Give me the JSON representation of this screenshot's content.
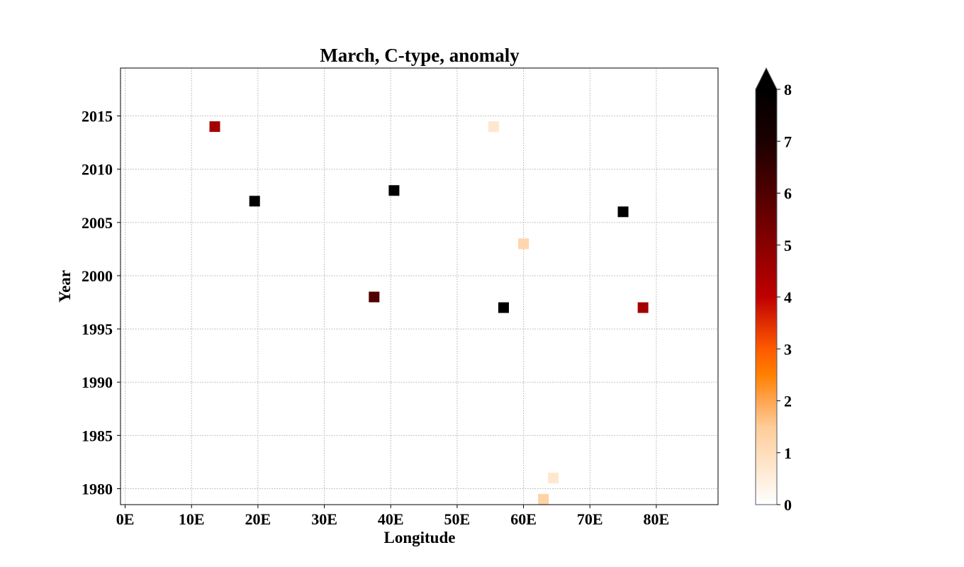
{
  "chart_data": {
    "type": "scatter",
    "title": "March, C-type, anomaly",
    "xlabel": "Longitude",
    "ylabel": "Year",
    "xlim": [
      -0.7,
      89.3
    ],
    "ylim": [
      1978.5,
      2019.5
    ],
    "x_ticks": [
      0,
      10,
      20,
      30,
      40,
      50,
      60,
      70,
      80
    ],
    "x_tick_labels": [
      "0E",
      "10E",
      "20E",
      "30E",
      "40E",
      "50E",
      "60E",
      "70E",
      "80E"
    ],
    "y_ticks": [
      1980,
      1985,
      1990,
      1995,
      2000,
      2005,
      2010,
      2015
    ],
    "y_tick_labels": [
      "1980",
      "1985",
      "1990",
      "1995",
      "2000",
      "2005",
      "2010",
      "2015"
    ],
    "grid": true,
    "marker": "square",
    "colormap": "gist_heat_r",
    "points": [
      {
        "x": 13.5,
        "y": 2014,
        "value": 4.5
      },
      {
        "x": 55.5,
        "y": 2014,
        "value": 0.7
      },
      {
        "x": 40.5,
        "y": 2008,
        "value": 8.5
      },
      {
        "x": 19.5,
        "y": 2007,
        "value": 8.5
      },
      {
        "x": 75.0,
        "y": 2006,
        "value": 8.5
      },
      {
        "x": 60.0,
        "y": 2003,
        "value": 1.2
      },
      {
        "x": 37.5,
        "y": 1998,
        "value": 6.0
      },
      {
        "x": 57.0,
        "y": 1997,
        "value": 8.5
      },
      {
        "x": 78.0,
        "y": 1997,
        "value": 4.5
      },
      {
        "x": 64.5,
        "y": 1981,
        "value": 0.7
      },
      {
        "x": 63.0,
        "y": 1979,
        "value": 1.3
      }
    ],
    "colorbar": {
      "min": 0,
      "max": 8,
      "ticks": [
        0,
        1,
        2,
        3,
        4,
        5,
        6,
        7,
        8
      ],
      "tick_labels": [
        "0",
        "1",
        "2",
        "3",
        "4",
        "5",
        "6",
        "7",
        "8"
      ],
      "extend": "max"
    }
  }
}
